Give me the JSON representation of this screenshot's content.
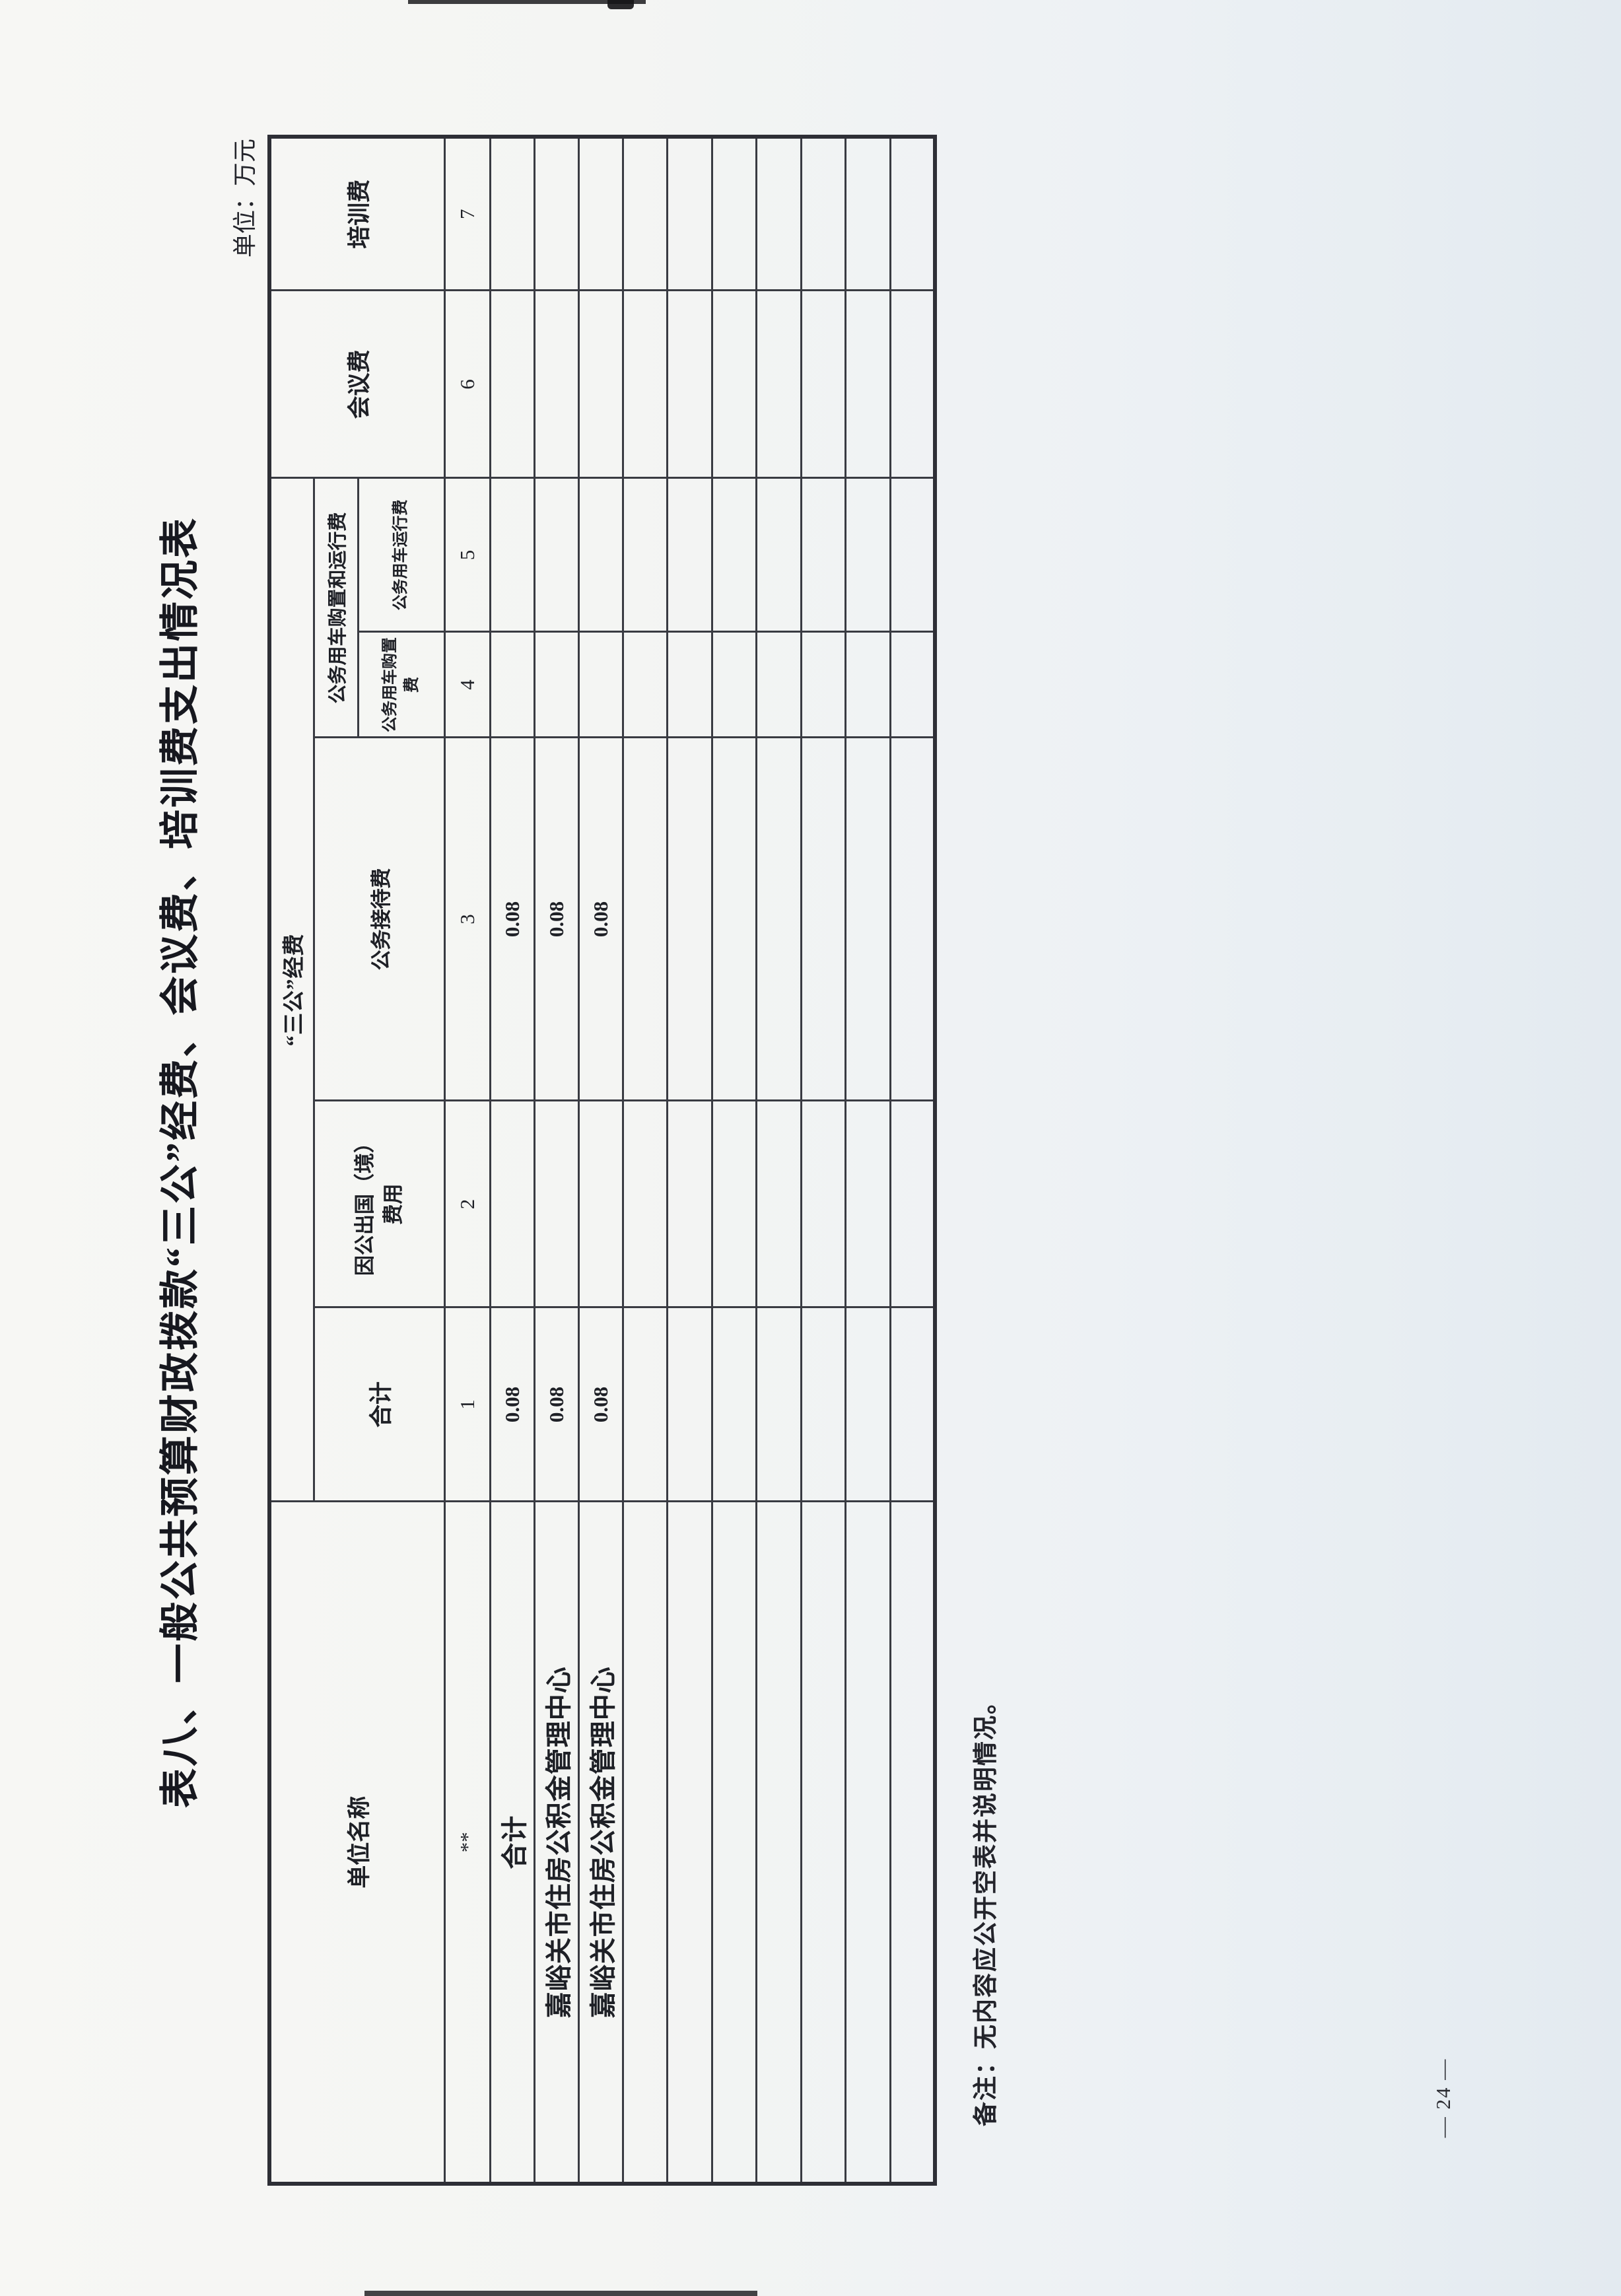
{
  "document": {
    "title": "表八、一般公共预算财政拨款“三公”经费、会议费、培训费支出情况表",
    "unit_note": "单位：万元",
    "remark": "备注：无内容应公开空表并说明情况。",
    "page_number": "— 24 —"
  },
  "table": {
    "headers": {
      "unit_name": "单位名称",
      "three_public_group": "“三公”经费",
      "col_total": "合计",
      "col_abroad": "因公出国（境）费用",
      "col_reception": "公务接待费",
      "vehicle_group": "公务用车购置和运行费",
      "col_vehicle_purchase": "公务用车购置费",
      "col_vehicle_operation": "公务用车运行费",
      "col_conference": "会议费",
      "col_training": "培训费"
    },
    "index_row": [
      "**",
      "1",
      "2",
      "3",
      "4",
      "5",
      "6",
      "7"
    ],
    "rows": [
      {
        "name": "合计",
        "cells": [
          "0.08",
          "",
          "0.08",
          "",
          "",
          "",
          ""
        ]
      },
      {
        "name": "嘉峪关市住房公积金管理中心",
        "cells": [
          "0.08",
          "",
          "0.08",
          "",
          "",
          "",
          ""
        ]
      },
      {
        "name": "嘉峪关市住房公积金管理中心",
        "cells": [
          "0.08",
          "",
          "0.08",
          "",
          "",
          "",
          ""
        ]
      },
      {
        "name": "",
        "cells": [
          "",
          "",
          "",
          "",
          "",
          "",
          ""
        ]
      },
      {
        "name": "",
        "cells": [
          "",
          "",
          "",
          "",
          "",
          "",
          ""
        ]
      },
      {
        "name": "",
        "cells": [
          "",
          "",
          "",
          "",
          "",
          "",
          ""
        ]
      },
      {
        "name": "",
        "cells": [
          "",
          "",
          "",
          "",
          "",
          "",
          ""
        ]
      },
      {
        "name": "",
        "cells": [
          "",
          "",
          "",
          "",
          "",
          "",
          ""
        ]
      },
      {
        "name": "",
        "cells": [
          "",
          "",
          "",
          "",
          "",
          "",
          ""
        ]
      },
      {
        "name": "",
        "cells": [
          "",
          "",
          "",
          "",
          "",
          "",
          ""
        ]
      }
    ]
  },
  "colors": {
    "ink": "#1e2026",
    "grid_line": "#393b42",
    "outer_border": "#2e2f36",
    "paper_left": "#f7f7f4",
    "paper_right": "#e3eaf0"
  }
}
